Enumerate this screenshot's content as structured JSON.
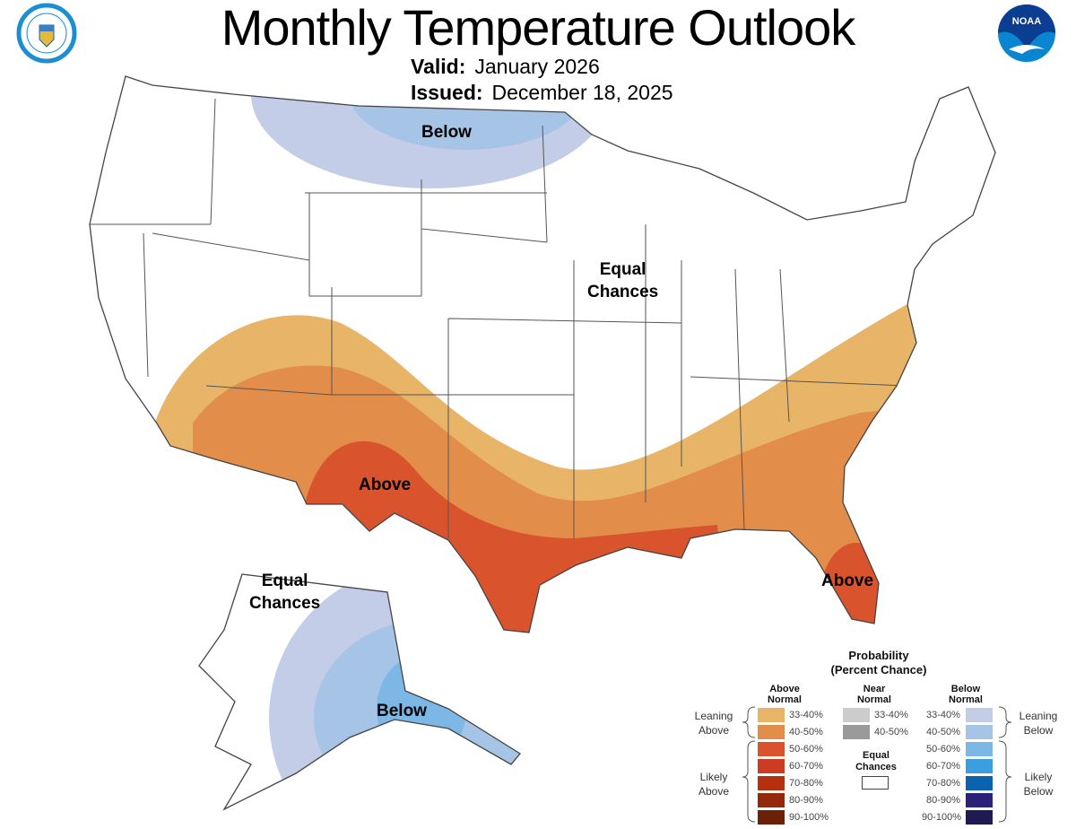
{
  "header": {
    "title": "Monthly Temperature Outlook",
    "valid_label": "Valid:",
    "valid_value": "January 2026",
    "issued_label": "Issued:",
    "issued_value": "December 18, 2025"
  },
  "logos": {
    "left": "Department of Commerce seal",
    "right": "NOAA"
  },
  "map": {
    "labels": {
      "north_below": "Below",
      "equal_chances_1": "Equal",
      "equal_chances_2": "Chances",
      "southwest_above": "Above",
      "florida_above": "Above",
      "alaska_equal_1": "Equal",
      "alaska_equal_2": "Chances",
      "alaska_below": "Below"
    }
  },
  "legend": {
    "title_1": "Probability",
    "title_2": "(Percent Chance)",
    "above_header_1": "Above",
    "above_header_2": "Normal",
    "near_header_1": "Near",
    "near_header_2": "Normal",
    "below_header_1": "Below",
    "below_header_2": "Normal",
    "leaning_above_1": "Leaning",
    "leaning_above_2": "Above",
    "likely_above_1": "Likely",
    "likely_above_2": "Above",
    "leaning_below_1": "Leaning",
    "leaning_below_2": "Below",
    "likely_below_1": "Likely",
    "likely_below_2": "Below",
    "equal_1": "Equal",
    "equal_2": "Chances",
    "above": [
      {
        "range": "33-40%",
        "color": "#e8b468"
      },
      {
        "range": "40-50%",
        "color": "#e38d4a"
      },
      {
        "range": "50-60%",
        "color": "#d9532d"
      },
      {
        "range": "60-70%",
        "color": "#cc3b22"
      },
      {
        "range": "70-80%",
        "color": "#b5300e"
      },
      {
        "range": "80-90%",
        "color": "#93290a"
      },
      {
        "range": "90-100%",
        "color": "#6b2007"
      }
    ],
    "near": [
      {
        "range": "33-40%",
        "color": "#cccccc"
      },
      {
        "range": "40-50%",
        "color": "#9a9a9a"
      }
    ],
    "below": [
      {
        "range": "33-40%",
        "color": "#c3cde8"
      },
      {
        "range": "40-50%",
        "color": "#a6c5e6"
      },
      {
        "range": "50-60%",
        "color": "#7db7e6"
      },
      {
        "range": "60-70%",
        "color": "#3a9fdf"
      },
      {
        "range": "70-80%",
        "color": "#0b63b0"
      },
      {
        "range": "80-90%",
        "color": "#2c2279"
      },
      {
        "range": "90-100%",
        "color": "#1f1b52"
      }
    ]
  }
}
